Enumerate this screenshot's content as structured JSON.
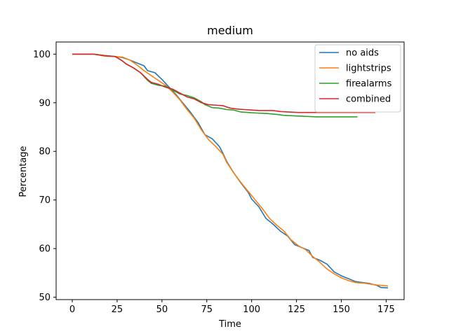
{
  "chart_data": {
    "type": "line",
    "title": "medium",
    "xlabel": "Time",
    "ylabel": "Percentage",
    "xlim": [
      -9,
      185
    ],
    "ylim": [
      49.5,
      102.5
    ],
    "xticks": [
      0,
      25,
      50,
      75,
      100,
      125,
      150,
      175
    ],
    "yticks": [
      50,
      60,
      70,
      80,
      90,
      100
    ],
    "grid": false,
    "legend_position": "top-right",
    "series": [
      {
        "name": "no aids",
        "color": "#1f77b4",
        "points": [
          [
            0,
            100
          ],
          [
            12,
            100
          ],
          [
            18,
            99.7
          ],
          [
            24,
            99.5
          ],
          [
            28,
            99.3
          ],
          [
            32,
            98.8
          ],
          [
            36,
            98.2
          ],
          [
            40,
            97.6
          ],
          [
            42,
            96.6
          ],
          [
            46,
            96.2
          ],
          [
            50,
            94.8
          ],
          [
            54,
            93.2
          ],
          [
            58,
            91.6
          ],
          [
            62,
            89.8
          ],
          [
            66,
            88.0
          ],
          [
            70,
            86.0
          ],
          [
            74,
            83.4
          ],
          [
            76,
            83.0
          ],
          [
            78,
            82.6
          ],
          [
            80,
            81.8
          ],
          [
            82,
            81.0
          ],
          [
            84,
            79.6
          ],
          [
            86,
            78.0
          ],
          [
            90,
            75.6
          ],
          [
            94,
            73.5
          ],
          [
            98,
            71.6
          ],
          [
            100,
            70.2
          ],
          [
            104,
            68.6
          ],
          [
            108,
            66.2
          ],
          [
            112,
            65.0
          ],
          [
            116,
            63.6
          ],
          [
            120,
            62.6
          ],
          [
            124,
            60.8
          ],
          [
            128,
            60.2
          ],
          [
            132,
            59.6
          ],
          [
            134,
            58.2
          ],
          [
            138,
            57.6
          ],
          [
            142,
            56.8
          ],
          [
            146,
            55.2
          ],
          [
            150,
            54.4
          ],
          [
            154,
            53.8
          ],
          [
            158,
            53.2
          ],
          [
            162,
            53.0
          ],
          [
            166,
            52.8
          ],
          [
            170,
            52.4
          ],
          [
            172,
            52.0
          ],
          [
            176,
            51.9
          ]
        ]
      },
      {
        "name": "lightstrips",
        "color": "#ff7f0e",
        "points": [
          [
            0,
            100
          ],
          [
            12,
            100
          ],
          [
            18,
            99.6
          ],
          [
            24,
            99.5
          ],
          [
            28,
            99.4
          ],
          [
            32,
            98.8
          ],
          [
            36,
            97.8
          ],
          [
            40,
            96.6
          ],
          [
            44,
            95.6
          ],
          [
            48,
            94.6
          ],
          [
            52,
            93.6
          ],
          [
            56,
            92.2
          ],
          [
            60,
            90.6
          ],
          [
            64,
            88.6
          ],
          [
            68,
            86.8
          ],
          [
            72,
            84.4
          ],
          [
            76,
            82.4
          ],
          [
            80,
            81.0
          ],
          [
            84,
            79.4
          ],
          [
            86,
            77.8
          ],
          [
            90,
            75.6
          ],
          [
            94,
            73.6
          ],
          [
            98,
            71.8
          ],
          [
            102,
            70.0
          ],
          [
            106,
            68.2
          ],
          [
            110,
            66.2
          ],
          [
            114,
            64.8
          ],
          [
            118,
            63.6
          ],
          [
            122,
            61.8
          ],
          [
            126,
            60.6
          ],
          [
            130,
            59.8
          ],
          [
            134,
            58.4
          ],
          [
            138,
            57.2
          ],
          [
            142,
            55.8
          ],
          [
            146,
            54.8
          ],
          [
            150,
            54.0
          ],
          [
            154,
            53.4
          ],
          [
            158,
            53.0
          ],
          [
            162,
            52.9
          ],
          [
            166,
            52.7
          ],
          [
            170,
            52.5
          ],
          [
            176,
            52.3
          ]
        ]
      },
      {
        "name": "firealarms",
        "color": "#2ca02c",
        "points": [
          [
            0,
            100
          ],
          [
            12,
            100
          ],
          [
            18,
            99.7
          ],
          [
            24,
            99.5
          ],
          [
            28,
            98.6
          ],
          [
            30,
            98.0
          ],
          [
            34,
            97.2
          ],
          [
            38,
            96.2
          ],
          [
            42,
            94.6
          ],
          [
            44,
            94.0
          ],
          [
            48,
            93.6
          ],
          [
            52,
            93.4
          ],
          [
            56,
            92.6
          ],
          [
            60,
            91.8
          ],
          [
            64,
            91.5
          ],
          [
            68,
            91.0
          ],
          [
            72,
            90.2
          ],
          [
            74,
            89.6
          ],
          [
            78,
            89.0
          ],
          [
            82,
            88.9
          ],
          [
            86,
            88.6
          ],
          [
            90,
            88.5
          ],
          [
            94,
            88.1
          ],
          [
            98,
            88.0
          ],
          [
            102,
            87.9
          ],
          [
            108,
            87.8
          ],
          [
            114,
            87.6
          ],
          [
            118,
            87.4
          ],
          [
            124,
            87.3
          ],
          [
            130,
            87.2
          ],
          [
            136,
            87.1
          ],
          [
            150,
            87.1
          ],
          [
            159,
            87.1
          ]
        ]
      },
      {
        "name": "combined",
        "color": "#d62728",
        "points": [
          [
            0,
            100
          ],
          [
            12,
            100
          ],
          [
            18,
            99.7
          ],
          [
            24,
            99.5
          ],
          [
            28,
            98.6
          ],
          [
            30,
            98.0
          ],
          [
            34,
            97.2
          ],
          [
            38,
            96.2
          ],
          [
            42,
            94.8
          ],
          [
            44,
            94.2
          ],
          [
            48,
            93.8
          ],
          [
            52,
            93.2
          ],
          [
            56,
            92.8
          ],
          [
            60,
            92.0
          ],
          [
            64,
            91.2
          ],
          [
            68,
            90.8
          ],
          [
            72,
            90.0
          ],
          [
            76,
            89.6
          ],
          [
            80,
            89.5
          ],
          [
            84,
            89.4
          ],
          [
            88,
            88.9
          ],
          [
            92,
            88.7
          ],
          [
            96,
            88.6
          ],
          [
            100,
            88.5
          ],
          [
            104,
            88.4
          ],
          [
            112,
            88.4
          ],
          [
            116,
            88.2
          ],
          [
            120,
            88.1
          ],
          [
            126,
            88.0
          ],
          [
            140,
            88.0
          ],
          [
            160,
            88.0
          ],
          [
            169,
            88.0
          ]
        ]
      }
    ]
  }
}
